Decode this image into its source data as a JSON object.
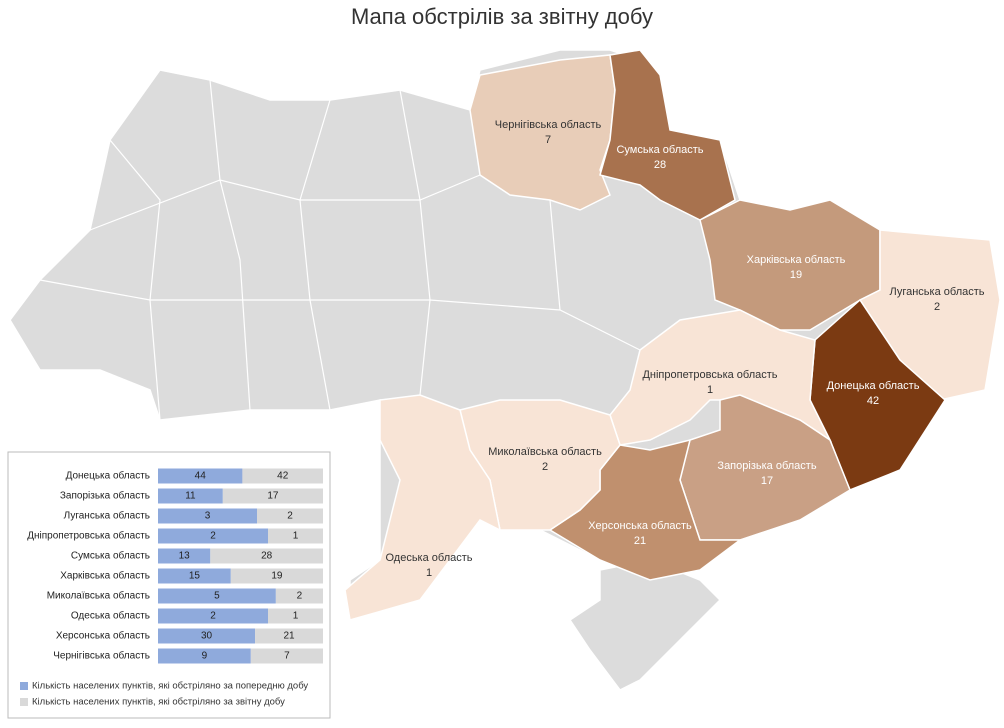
{
  "map": {
    "title": "Мапа обстрілів за звітну добу",
    "regions": [
      {
        "name": "Чернігівська область",
        "value": 7,
        "color": "#e8cdb8"
      },
      {
        "name": "Сумська область",
        "value": 28,
        "color": "#a8724e"
      },
      {
        "name": "Харківська область",
        "value": 19,
        "color": "#c49a7c"
      },
      {
        "name": "Луганська область",
        "value": 2,
        "color": "#f8e4d6"
      },
      {
        "name": "Донецька область",
        "value": 42,
        "color": "#7b3a12"
      },
      {
        "name": "Дніпропетровська область",
        "value": 1,
        "color": "#f8e4d6"
      },
      {
        "name": "Запорізька область",
        "value": 17,
        "color": "#c9a085"
      },
      {
        "name": "Херсонська область",
        "value": 21,
        "color": "#c0906e"
      },
      {
        "name": "Миколаївська область",
        "value": 2,
        "color": "#f8e4d6"
      },
      {
        "name": "Одеська область",
        "value": 1,
        "color": "#f8e4d6"
      }
    ]
  },
  "chart_data": {
    "type": "bar",
    "stacked": "percent",
    "categories": [
      "Донецька область",
      "Запорізька область",
      "Луганська область",
      "Дніпропетровська область",
      "Сумська область",
      "Харківська область",
      "Миколаївська область",
      "Одеська область",
      "Херсонська область",
      "Чернігівська область"
    ],
    "series": [
      {
        "name": "Кількість населених пунктів, які обстріляно за попередню добу",
        "color": "#8faadc",
        "values": [
          44,
          11,
          3,
          2,
          13,
          15,
          5,
          2,
          30,
          9
        ]
      },
      {
        "name": "Кількість населених пунктів, які обстріляно за звітну добу",
        "color": "#d9d9d9",
        "values": [
          42,
          17,
          2,
          1,
          28,
          19,
          2,
          1,
          21,
          7
        ]
      }
    ]
  }
}
